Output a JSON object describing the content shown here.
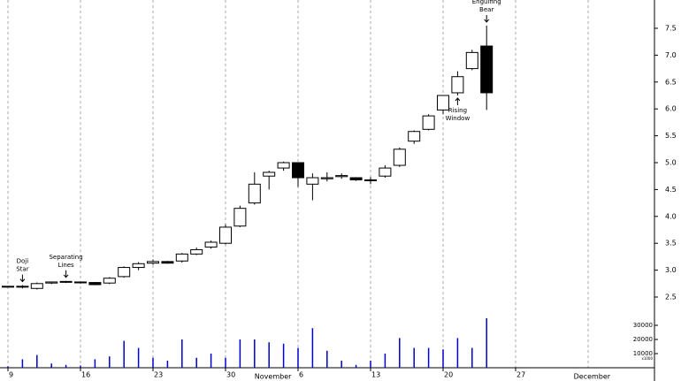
{
  "chart_data": {
    "type": "candlestick",
    "categories": [
      "9",
      null,
      null,
      null,
      null,
      "16",
      null,
      null,
      null,
      null,
      "23",
      null,
      null,
      null,
      null,
      "30",
      null,
      null,
      null,
      null,
      "6",
      null,
      null,
      null,
      null,
      "13",
      null,
      null,
      null,
      null,
      "20",
      null,
      null,
      null,
      null,
      "27",
      null,
      null,
      null,
      null,
      null,
      null,
      null,
      null,
      null
    ],
    "months": [
      {
        "label": "November",
        "at": 17
      },
      {
        "label": "December",
        "at": 39
      }
    ],
    "open": [
      2.69,
      2.69,
      2.66,
      2.76,
      2.78,
      2.78,
      2.77,
      2.76,
      2.88,
      3.05,
      3.13,
      3.16,
      3.17,
      3.3,
      3.43,
      3.5,
      3.82,
      4.25,
      4.75,
      4.9,
      5.0,
      4.6,
      4.7,
      4.74,
      4.72,
      4.67,
      4.75,
      4.95,
      5.4,
      5.62,
      5.98,
      6.3,
      6.75,
      7.17,
      null,
      null,
      null,
      null,
      null,
      null,
      null,
      null,
      null,
      null,
      null
    ],
    "high": [
      2.7,
      2.72,
      2.77,
      2.79,
      2.8,
      2.79,
      2.78,
      2.87,
      3.07,
      3.15,
      3.2,
      3.17,
      3.32,
      3.42,
      3.55,
      3.85,
      4.2,
      4.82,
      4.85,
      5.02,
      5.0,
      4.8,
      4.82,
      4.8,
      4.73,
      4.73,
      4.95,
      5.28,
      5.6,
      5.9,
      6.25,
      6.7,
      7.1,
      7.55,
      null,
      null,
      null,
      null,
      null,
      null,
      null,
      null,
      null,
      null,
      null
    ],
    "low": [
      2.68,
      2.66,
      2.64,
      2.74,
      2.76,
      2.75,
      2.72,
      2.74,
      2.86,
      3.0,
      3.1,
      3.12,
      3.14,
      3.28,
      3.4,
      3.48,
      3.8,
      4.22,
      4.5,
      4.85,
      4.55,
      4.3,
      4.65,
      4.7,
      4.66,
      4.6,
      4.72,
      4.92,
      5.35,
      5.6,
      5.9,
      6.25,
      6.72,
      5.98,
      null,
      null,
      null,
      null,
      null,
      null,
      null,
      null,
      null,
      null,
      null
    ],
    "close": [
      2.7,
      2.7,
      2.75,
      2.78,
      2.79,
      2.77,
      2.73,
      2.85,
      3.05,
      3.12,
      3.16,
      3.13,
      3.3,
      3.38,
      3.52,
      3.8,
      4.15,
      4.6,
      4.82,
      5.0,
      4.72,
      4.72,
      4.72,
      4.76,
      4.68,
      4.68,
      4.9,
      5.25,
      5.58,
      5.87,
      6.25,
      6.6,
      7.05,
      6.3,
      null,
      null,
      null,
      null,
      null,
      null,
      null,
      null,
      null,
      null,
      null
    ],
    "up_color": "#ffffff",
    "down_color": "#000000",
    "volume": {
      "color": "#0000cc",
      "unit_label": "x1000",
      "values": [
        1000,
        6000,
        9000,
        3000,
        2000,
        1500,
        6000,
        8000,
        19000,
        14000,
        7000,
        5000,
        20000,
        7000,
        10000,
        7000,
        20000,
        20000,
        18000,
        17000,
        14000,
        28000,
        12000,
        5000,
        2000,
        5000,
        10000,
        21000,
        14000,
        14000,
        13000,
        21000,
        14000,
        35000,
        null,
        null,
        null,
        null,
        null,
        null,
        null,
        null,
        null,
        null,
        null
      ],
      "ylim": [
        0,
        36000
      ],
      "yticks": [
        10000,
        20000,
        30000
      ]
    },
    "ylim": [
      2.25,
      8.0
    ],
    "yticks": [
      2.5,
      3.0,
      3.5,
      4.0,
      4.5,
      5.0,
      5.5,
      6.0,
      6.5,
      7.0,
      7.5
    ],
    "ytick_labels": [
      "2.5",
      "3.0",
      "3.5",
      "4.0",
      "4.5",
      "5.0",
      "5.5",
      "6.0",
      "6.5",
      "7.0",
      "7.5"
    ],
    "grid": true,
    "annotations": [
      {
        "text": [
          "Doji",
          "Star"
        ],
        "at": 1,
        "side": "above"
      },
      {
        "text": [
          "Separating",
          "Lines"
        ],
        "at": 4,
        "side": "above"
      },
      {
        "text": [
          "Rising",
          "Window"
        ],
        "at": 31,
        "side": "below"
      },
      {
        "text": [
          "Engulfing",
          "Bear"
        ],
        "at": 33,
        "side": "above"
      }
    ]
  }
}
